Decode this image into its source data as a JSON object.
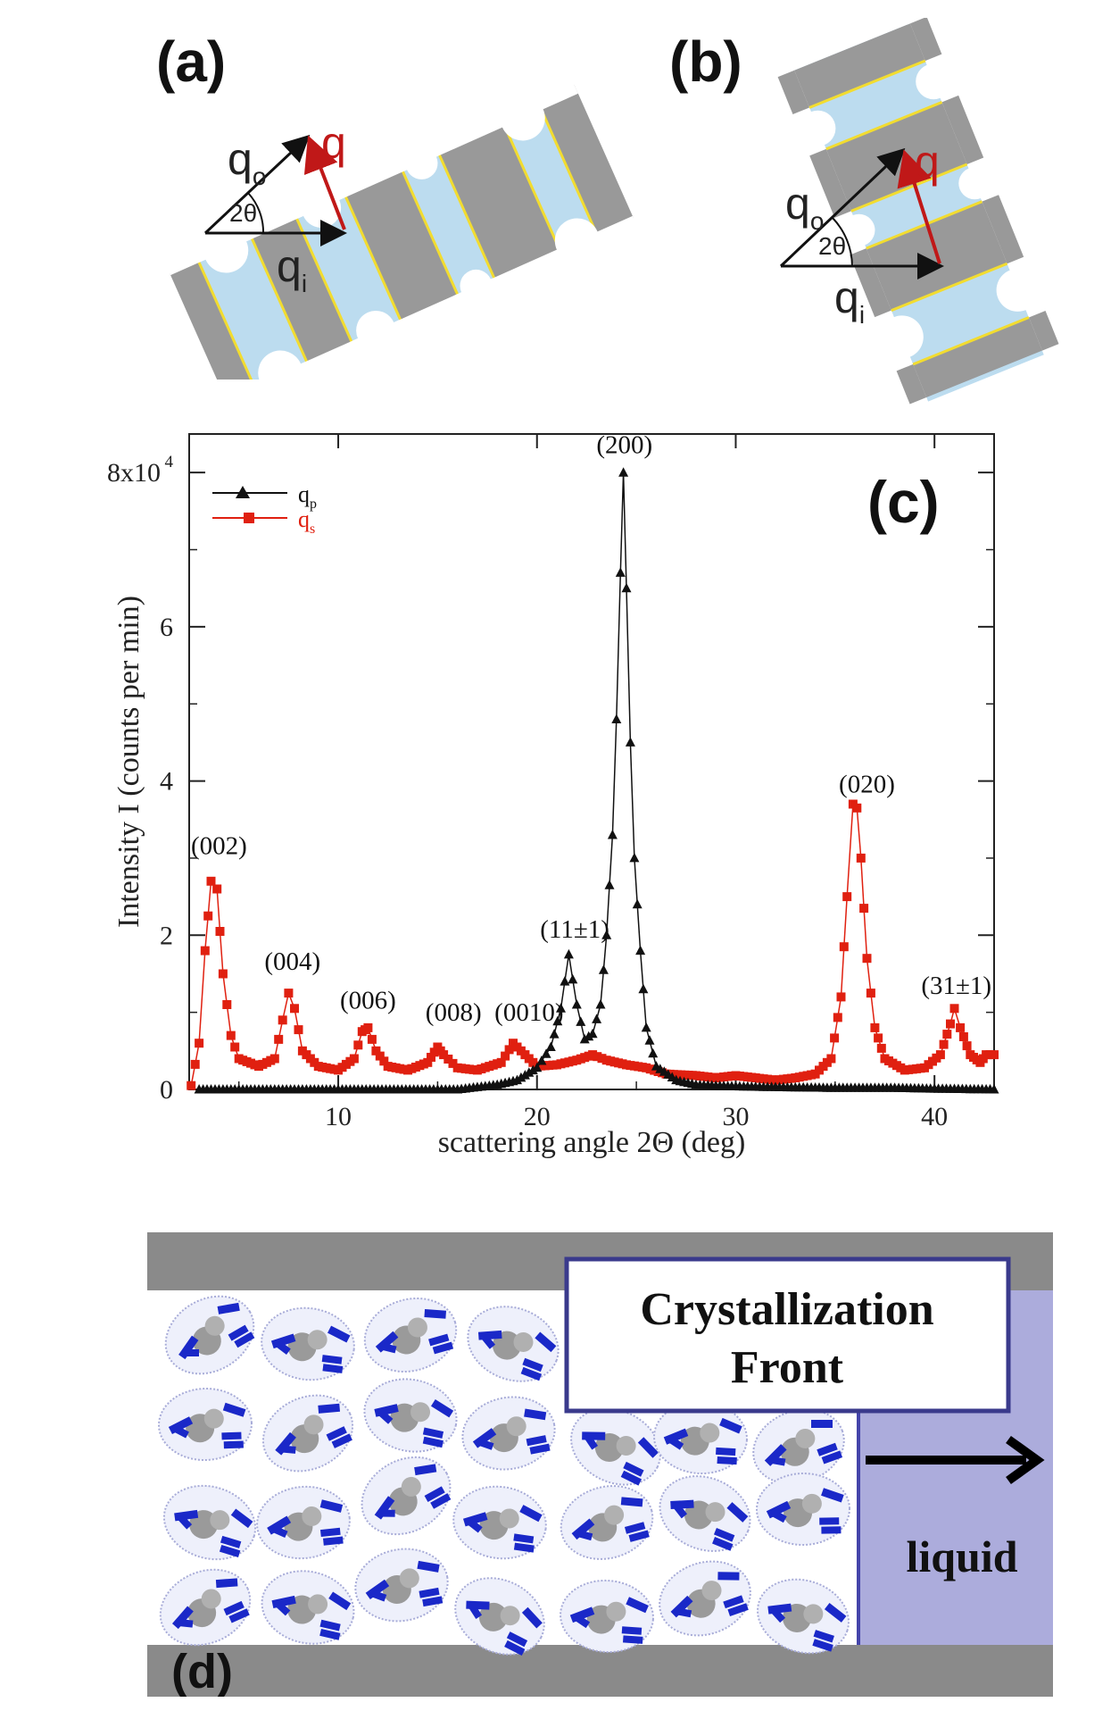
{
  "panels": {
    "a": {
      "label": "(a)",
      "qo": "q",
      "qo_sub": "o",
      "qi": "q",
      "qi_sub": "i",
      "q": "q",
      "angle": "2θ"
    },
    "b": {
      "label": "(b)",
      "qo": "q",
      "qo_sub": "o",
      "qi": "q",
      "qi_sub": "i",
      "q": "q",
      "angle": "2θ"
    },
    "c": {
      "label": "(c)"
    },
    "d": {
      "label": "(d)",
      "front_line1": "Crystallization",
      "front_line2": "Front",
      "liquid": "liquid"
    }
  },
  "chart_data": {
    "type": "line",
    "title": "",
    "xlabel": "scattering angle 2Θ (deg)",
    "ylabel": "Intensity I (counts per min)",
    "xlim": [
      2.5,
      43
    ],
    "ylim": [
      0,
      85000
    ],
    "xticks": [
      10,
      20,
      30,
      40
    ],
    "xtick_labels": [
      "10",
      "20",
      "30",
      "40"
    ],
    "yticks": [
      0,
      20000,
      40000,
      60000,
      80000
    ],
    "ytick_labels": [
      "0",
      "2",
      "4",
      "6",
      "8x10"
    ],
    "ytick_top_exp": "4",
    "legend": {
      "position": "top-left"
    },
    "series": [
      {
        "name": "q",
        "sub": "p",
        "color": "#111111",
        "marker": "triangle",
        "points": [
          [
            3,
            0
          ],
          [
            4,
            0
          ],
          [
            5,
            0
          ],
          [
            6,
            0
          ],
          [
            8,
            0
          ],
          [
            10,
            0
          ],
          [
            12,
            0
          ],
          [
            14,
            0
          ],
          [
            16,
            0
          ],
          [
            17,
            300
          ],
          [
            18,
            600
          ],
          [
            19,
            1200
          ],
          [
            20,
            2800
          ],
          [
            20.7,
            5500
          ],
          [
            21.2,
            10500
          ],
          [
            21.6,
            17500
          ],
          [
            22,
            11000
          ],
          [
            22.4,
            6500
          ],
          [
            22.8,
            7200
          ],
          [
            23.2,
            11000
          ],
          [
            23.5,
            20000
          ],
          [
            23.8,
            33000
          ],
          [
            24.0,
            48000
          ],
          [
            24.2,
            67000
          ],
          [
            24.35,
            80000
          ],
          [
            24.5,
            65000
          ],
          [
            24.7,
            45000
          ],
          [
            24.9,
            30000
          ],
          [
            25.2,
            18000
          ],
          [
            25.5,
            8000
          ],
          [
            26,
            3000
          ],
          [
            27,
            1200
          ],
          [
            28,
            600
          ],
          [
            30,
            400
          ],
          [
            32,
            300
          ],
          [
            35,
            200
          ],
          [
            38,
            200
          ],
          [
            40,
            100
          ],
          [
            43,
            0
          ]
        ]
      },
      {
        "name": "q",
        "sub": "s",
        "color": "#e02010",
        "marker": "square",
        "points": [
          [
            2.6,
            500
          ],
          [
            3.0,
            6000
          ],
          [
            3.3,
            18000
          ],
          [
            3.6,
            27000
          ],
          [
            3.9,
            26000
          ],
          [
            4.2,
            15000
          ],
          [
            4.6,
            7000
          ],
          [
            5.0,
            4000
          ],
          [
            6.0,
            3000
          ],
          [
            6.8,
            4000
          ],
          [
            7.2,
            9000
          ],
          [
            7.5,
            12500
          ],
          [
            7.8,
            10500
          ],
          [
            8.2,
            5000
          ],
          [
            9.0,
            3000
          ],
          [
            10.0,
            2500
          ],
          [
            10.8,
            4000
          ],
          [
            11.2,
            7500
          ],
          [
            11.5,
            8000
          ],
          [
            11.9,
            5000
          ],
          [
            12.5,
            3000
          ],
          [
            13.5,
            2500
          ],
          [
            14.5,
            3500
          ],
          [
            15.0,
            5500
          ],
          [
            15.3,
            4500
          ],
          [
            16.0,
            2800
          ],
          [
            17.0,
            2500
          ],
          [
            18.2,
            3500
          ],
          [
            18.8,
            6000
          ],
          [
            19.2,
            5000
          ],
          [
            20.0,
            3000
          ],
          [
            21.0,
            3200
          ],
          [
            22.0,
            3800
          ],
          [
            22.8,
            4500
          ],
          [
            23.5,
            3800
          ],
          [
            24.5,
            3200
          ],
          [
            25.5,
            2800
          ],
          [
            26.5,
            2000
          ],
          [
            28,
            1800
          ],
          [
            29,
            1500
          ],
          [
            30,
            1800
          ],
          [
            31,
            1500
          ],
          [
            32,
            1200
          ],
          [
            33,
            1500
          ],
          [
            34,
            2000
          ],
          [
            34.8,
            4000
          ],
          [
            35.3,
            12000
          ],
          [
            35.6,
            25000
          ],
          [
            35.9,
            37000
          ],
          [
            36.1,
            36500
          ],
          [
            36.3,
            30000
          ],
          [
            36.6,
            17000
          ],
          [
            37.0,
            8000
          ],
          [
            37.5,
            4000
          ],
          [
            38.5,
            2500
          ],
          [
            39.5,
            2800
          ],
          [
            40.3,
            4500
          ],
          [
            40.8,
            8500
          ],
          [
            41.0,
            10500
          ],
          [
            41.3,
            8000
          ],
          [
            41.8,
            4500
          ],
          [
            42.3,
            3500
          ],
          [
            42.6,
            4500
          ],
          [
            43,
            4500
          ]
        ]
      }
    ],
    "annotations": [
      {
        "text": "(002)",
        "x": 4.0,
        "y": 30500
      },
      {
        "text": "(004)",
        "x": 7.7,
        "y": 15500
      },
      {
        "text": "(006)",
        "x": 11.5,
        "y": 10500
      },
      {
        "text": "(008)",
        "x": 15.8,
        "y": 8900
      },
      {
        "text": "(0010)",
        "x": 19.6,
        "y": 8900
      },
      {
        "text": "(11±1)",
        "x": 21.9,
        "y": 19700
      },
      {
        "text": "(200)",
        "x": 24.4,
        "y": 82500
      },
      {
        "text": "(020)",
        "x": 36.6,
        "y": 38500
      },
      {
        "text": "(31±1)",
        "x": 41.1,
        "y": 12400
      }
    ]
  }
}
